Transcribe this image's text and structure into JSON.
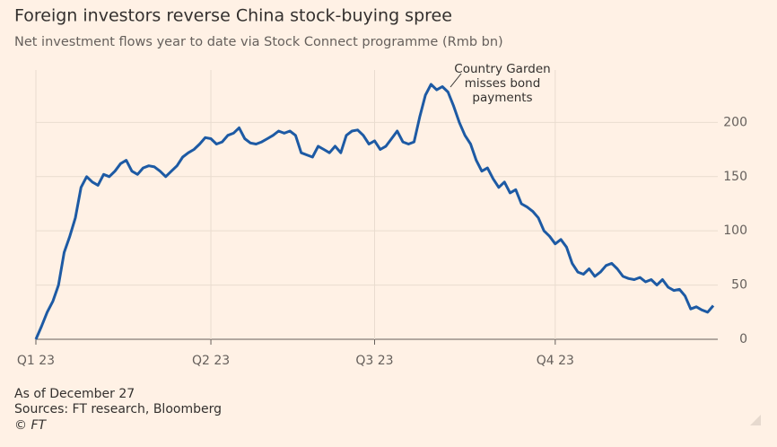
{
  "chart_data": {
    "type": "line",
    "title": "Foreign investors reverse China stock-buying spree",
    "subtitle": "Net investment flows year to date via Stock Connect programme (Rmb bn)",
    "annotation": [
      "Country Garden",
      "misses bond",
      "payments"
    ],
    "notes": [
      "As of December 27",
      "Sources: FT research, Bloomberg",
      "© FT"
    ],
    "categories": [
      "Q1 23",
      null,
      null,
      null,
      null,
      null,
      null,
      null,
      null,
      null,
      null,
      null,
      null,
      null,
      null,
      null,
      null,
      null,
      null,
      null,
      null,
      null,
      null,
      null,
      null,
      null,
      null,
      null,
      null,
      null,
      null,
      "Q2 23",
      null,
      null,
      null,
      null,
      null,
      null,
      null,
      null,
      null,
      null,
      null,
      null,
      null,
      null,
      null,
      null,
      null,
      null,
      null,
      null,
      null,
      null,
      null,
      null,
      null,
      null,
      null,
      null,
      "Q3 23",
      null,
      null,
      null,
      null,
      null,
      null,
      null,
      null,
      null,
      null,
      null,
      null,
      null,
      null,
      null,
      null,
      null,
      null,
      null,
      null,
      null,
      null,
      null,
      null,
      null,
      null,
      null,
      null,
      null,
      null,
      null,
      "Q4 23",
      null,
      null,
      null,
      null,
      null,
      null,
      null,
      null,
      null,
      null,
      null,
      null,
      null,
      null,
      null,
      null,
      null,
      null,
      null,
      null,
      null,
      null,
      null,
      null,
      null,
      null,
      null,
      null
    ],
    "values": [
      0,
      12,
      25,
      35,
      50,
      80,
      95,
      112,
      140,
      150,
      145,
      142,
      152,
      150,
      155,
      162,
      165,
      155,
      152,
      158,
      160,
      159,
      155,
      150,
      155,
      160,
      168,
      172,
      175,
      180,
      186,
      185,
      180,
      182,
      188,
      190,
      195,
      185,
      181,
      180,
      182,
      185,
      188,
      192,
      190,
      192,
      188,
      172,
      170,
      168,
      178,
      175,
      172,
      178,
      172,
      188,
      192,
      193,
      188,
      180,
      183,
      175,
      178,
      185,
      192,
      182,
      180,
      182,
      205,
      225,
      235,
      230,
      233,
      228,
      215,
      200,
      188,
      180,
      165,
      155,
      158,
      148,
      140,
      145,
      135,
      138,
      125,
      122,
      118,
      112,
      100,
      95,
      88,
      92,
      85,
      70,
      62,
      60,
      65,
      58,
      62,
      68,
      70,
      65,
      58,
      56,
      55,
      57,
      53,
      55,
      50,
      55,
      48,
      45,
      46,
      40,
      28,
      30,
      27,
      25,
      31
    ],
    "color": "#1d5aa4",
    "ylim": [
      0,
      240
    ],
    "yticks": [
      0,
      50,
      100,
      150,
      200
    ],
    "grid": true
  }
}
